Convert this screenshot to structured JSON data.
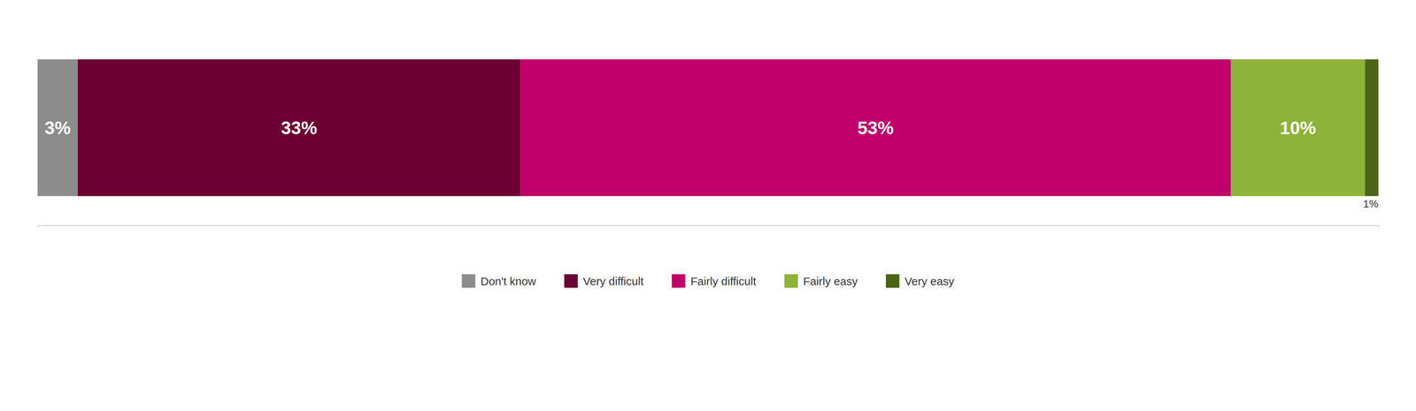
{
  "chart_data": {
    "type": "bar",
    "orientation": "horizontal",
    "stacked": true,
    "categories": [
      null
    ],
    "series": [
      {
        "name": "Don't know",
        "color": "#8C8C8C",
        "values": [
          3
        ],
        "value_labels": [
          "3%"
        ]
      },
      {
        "name": "Very difficult",
        "color": "#6B0032",
        "values": [
          33
        ],
        "value_labels": [
          "33%"
        ]
      },
      {
        "name": "Fairly difficult",
        "color": "#C0006A",
        "values": [
          53
        ],
        "value_labels": [
          "53%"
        ]
      },
      {
        "name": "Fairly easy",
        "color": "#8DB33A",
        "values": [
          10
        ],
        "value_labels": [
          "10%"
        ]
      },
      {
        "name": "Very easy",
        "color": "#4B6416",
        "values": [
          1
        ],
        "value_labels": [
          "1%"
        ]
      }
    ],
    "xlim": [
      0,
      100
    ],
    "data_labels": true,
    "tick_labels": false,
    "legend": "bottom"
  }
}
